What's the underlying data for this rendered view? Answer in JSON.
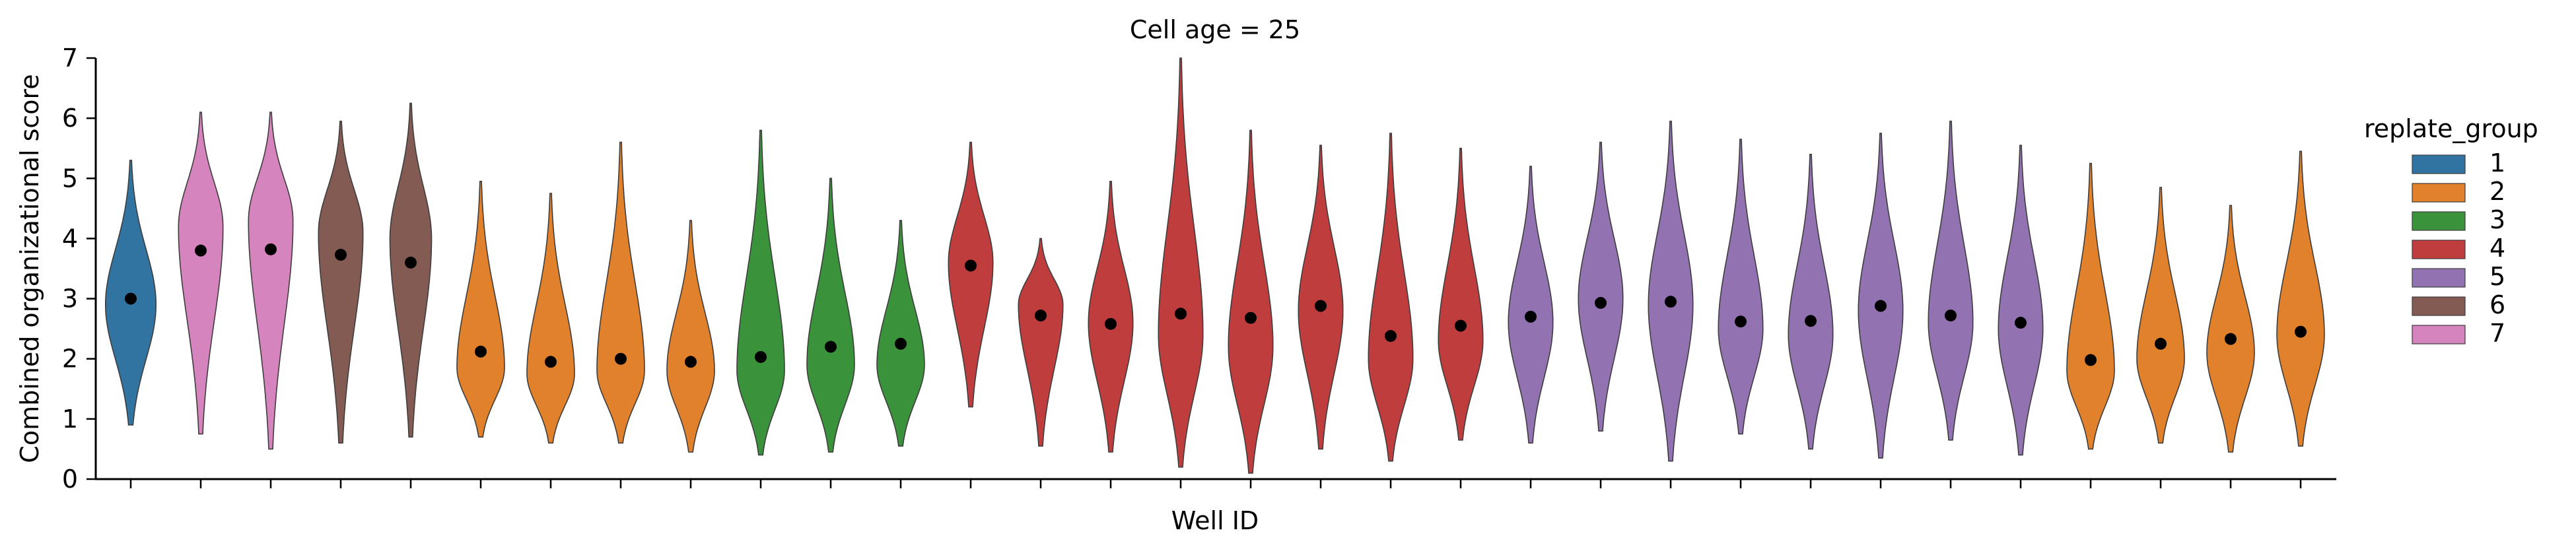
{
  "chart_data": {
    "type": "violin",
    "title": "Cell age = 25",
    "xlabel": "Well ID",
    "ylabel": "Combined organizational score",
    "ylim": [
      0,
      7
    ],
    "yticks": [
      0,
      1,
      2,
      3,
      4,
      5,
      6,
      7
    ],
    "grid": false,
    "legend": {
      "title": "replate_group",
      "placement": "right, outside plot",
      "entries": [
        {
          "label": "1",
          "color": "#3274a1"
        },
        {
          "label": "2",
          "color": "#e1812c"
        },
        {
          "label": "3",
          "color": "#3a923a"
        },
        {
          "label": "4",
          "color": "#c03d3e"
        },
        {
          "label": "5",
          "color": "#9372b2"
        },
        {
          "label": "6",
          "color": "#845b53"
        },
        {
          "label": "7",
          "color": "#d684bd"
        }
      ]
    },
    "violins": [
      {
        "group": "1",
        "min": 0.9,
        "max": 5.3,
        "mean": 3.0,
        "mode": 2.9,
        "width": 0.85,
        "skew": 0.4
      },
      {
        "group": "7",
        "min": 0.75,
        "max": 6.1,
        "mean": 3.8,
        "mode": 4.2,
        "width": 0.75,
        "skew": 0.55
      },
      {
        "group": "7",
        "min": 0.5,
        "max": 6.1,
        "mean": 3.82,
        "mode": 4.3,
        "width": 0.75,
        "skew": 0.55
      },
      {
        "group": "6",
        "min": 0.6,
        "max": 5.95,
        "mean": 3.73,
        "mode": 4.1,
        "width": 0.75,
        "skew": 0.55
      },
      {
        "group": "6",
        "min": 0.7,
        "max": 6.25,
        "mean": 3.6,
        "mode": 4.0,
        "width": 0.7,
        "skew": 0.55
      },
      {
        "group": "2",
        "min": 0.7,
        "max": 4.95,
        "mean": 2.12,
        "mode": 1.85,
        "width": 0.8,
        "skew": 0.3
      },
      {
        "group": "2",
        "min": 0.6,
        "max": 4.75,
        "mean": 1.95,
        "mode": 1.75,
        "width": 0.8,
        "skew": 0.3
      },
      {
        "group": "2",
        "min": 0.6,
        "max": 5.6,
        "mean": 2.0,
        "mode": 1.8,
        "width": 0.8,
        "skew": 0.3
      },
      {
        "group": "2",
        "min": 0.45,
        "max": 4.3,
        "mean": 1.95,
        "mode": 1.8,
        "width": 0.8,
        "skew": 0.3
      },
      {
        "group": "3",
        "min": 0.4,
        "max": 5.8,
        "mean": 2.03,
        "mode": 1.8,
        "width": 0.8,
        "skew": 0.3
      },
      {
        "group": "3",
        "min": 0.45,
        "max": 5.0,
        "mean": 2.2,
        "mode": 1.9,
        "width": 0.8,
        "skew": 0.3
      },
      {
        "group": "3",
        "min": 0.55,
        "max": 4.3,
        "mean": 2.25,
        "mode": 1.9,
        "width": 0.8,
        "skew": 0.3
      },
      {
        "group": "4",
        "min": 1.2,
        "max": 5.6,
        "mean": 3.55,
        "mode": 3.6,
        "width": 0.75,
        "skew": 0.45
      },
      {
        "group": "4",
        "min": 0.55,
        "max": 4.0,
        "mean": 2.72,
        "mode": 2.9,
        "width": 0.75,
        "skew": 0.4
      },
      {
        "group": "4",
        "min": 0.45,
        "max": 4.95,
        "mean": 2.58,
        "mode": 2.6,
        "width": 0.75,
        "skew": 0.4
      },
      {
        "group": "4",
        "min": 0.2,
        "max": 7.0,
        "mean": 2.75,
        "mode": 2.4,
        "width": 0.75,
        "skew": 0.4
      },
      {
        "group": "4",
        "min": 0.1,
        "max": 5.8,
        "mean": 2.68,
        "mode": 2.2,
        "width": 0.75,
        "skew": 0.4
      },
      {
        "group": "4",
        "min": 0.5,
        "max": 5.55,
        "mean": 2.88,
        "mode": 2.8,
        "width": 0.75,
        "skew": 0.4
      },
      {
        "group": "4",
        "min": 0.3,
        "max": 5.75,
        "mean": 2.38,
        "mode": 2.0,
        "width": 0.75,
        "skew": 0.4
      },
      {
        "group": "4",
        "min": 0.65,
        "max": 5.5,
        "mean": 2.55,
        "mode": 2.3,
        "width": 0.75,
        "skew": 0.4
      },
      {
        "group": "5",
        "min": 0.6,
        "max": 5.2,
        "mean": 2.7,
        "mode": 2.6,
        "width": 0.75,
        "skew": 0.4
      },
      {
        "group": "5",
        "min": 0.8,
        "max": 5.6,
        "mean": 2.93,
        "mode": 3.0,
        "width": 0.75,
        "skew": 0.4
      },
      {
        "group": "5",
        "min": 0.3,
        "max": 5.95,
        "mean": 2.95,
        "mode": 2.9,
        "width": 0.75,
        "skew": 0.4
      },
      {
        "group": "5",
        "min": 0.75,
        "max": 5.65,
        "mean": 2.62,
        "mode": 2.5,
        "width": 0.75,
        "skew": 0.4
      },
      {
        "group": "5",
        "min": 0.5,
        "max": 5.4,
        "mean": 2.63,
        "mode": 2.4,
        "width": 0.75,
        "skew": 0.4
      },
      {
        "group": "5",
        "min": 0.35,
        "max": 5.75,
        "mean": 2.88,
        "mode": 2.8,
        "width": 0.75,
        "skew": 0.4
      },
      {
        "group": "5",
        "min": 0.65,
        "max": 5.95,
        "mean": 2.72,
        "mode": 2.6,
        "width": 0.75,
        "skew": 0.4
      },
      {
        "group": "5",
        "min": 0.4,
        "max": 5.55,
        "mean": 2.6,
        "mode": 2.5,
        "width": 0.75,
        "skew": 0.4
      },
      {
        "group": "2",
        "min": 0.5,
        "max": 5.25,
        "mean": 1.98,
        "mode": 1.8,
        "width": 0.8,
        "skew": 0.3
      },
      {
        "group": "2",
        "min": 0.6,
        "max": 4.85,
        "mean": 2.25,
        "mode": 2.0,
        "width": 0.8,
        "skew": 0.3
      },
      {
        "group": "2",
        "min": 0.45,
        "max": 4.55,
        "mean": 2.33,
        "mode": 2.1,
        "width": 0.8,
        "skew": 0.3
      },
      {
        "group": "2",
        "min": 0.55,
        "max": 5.45,
        "mean": 2.45,
        "mode": 2.4,
        "width": 0.8,
        "skew": 0.3
      }
    ]
  }
}
